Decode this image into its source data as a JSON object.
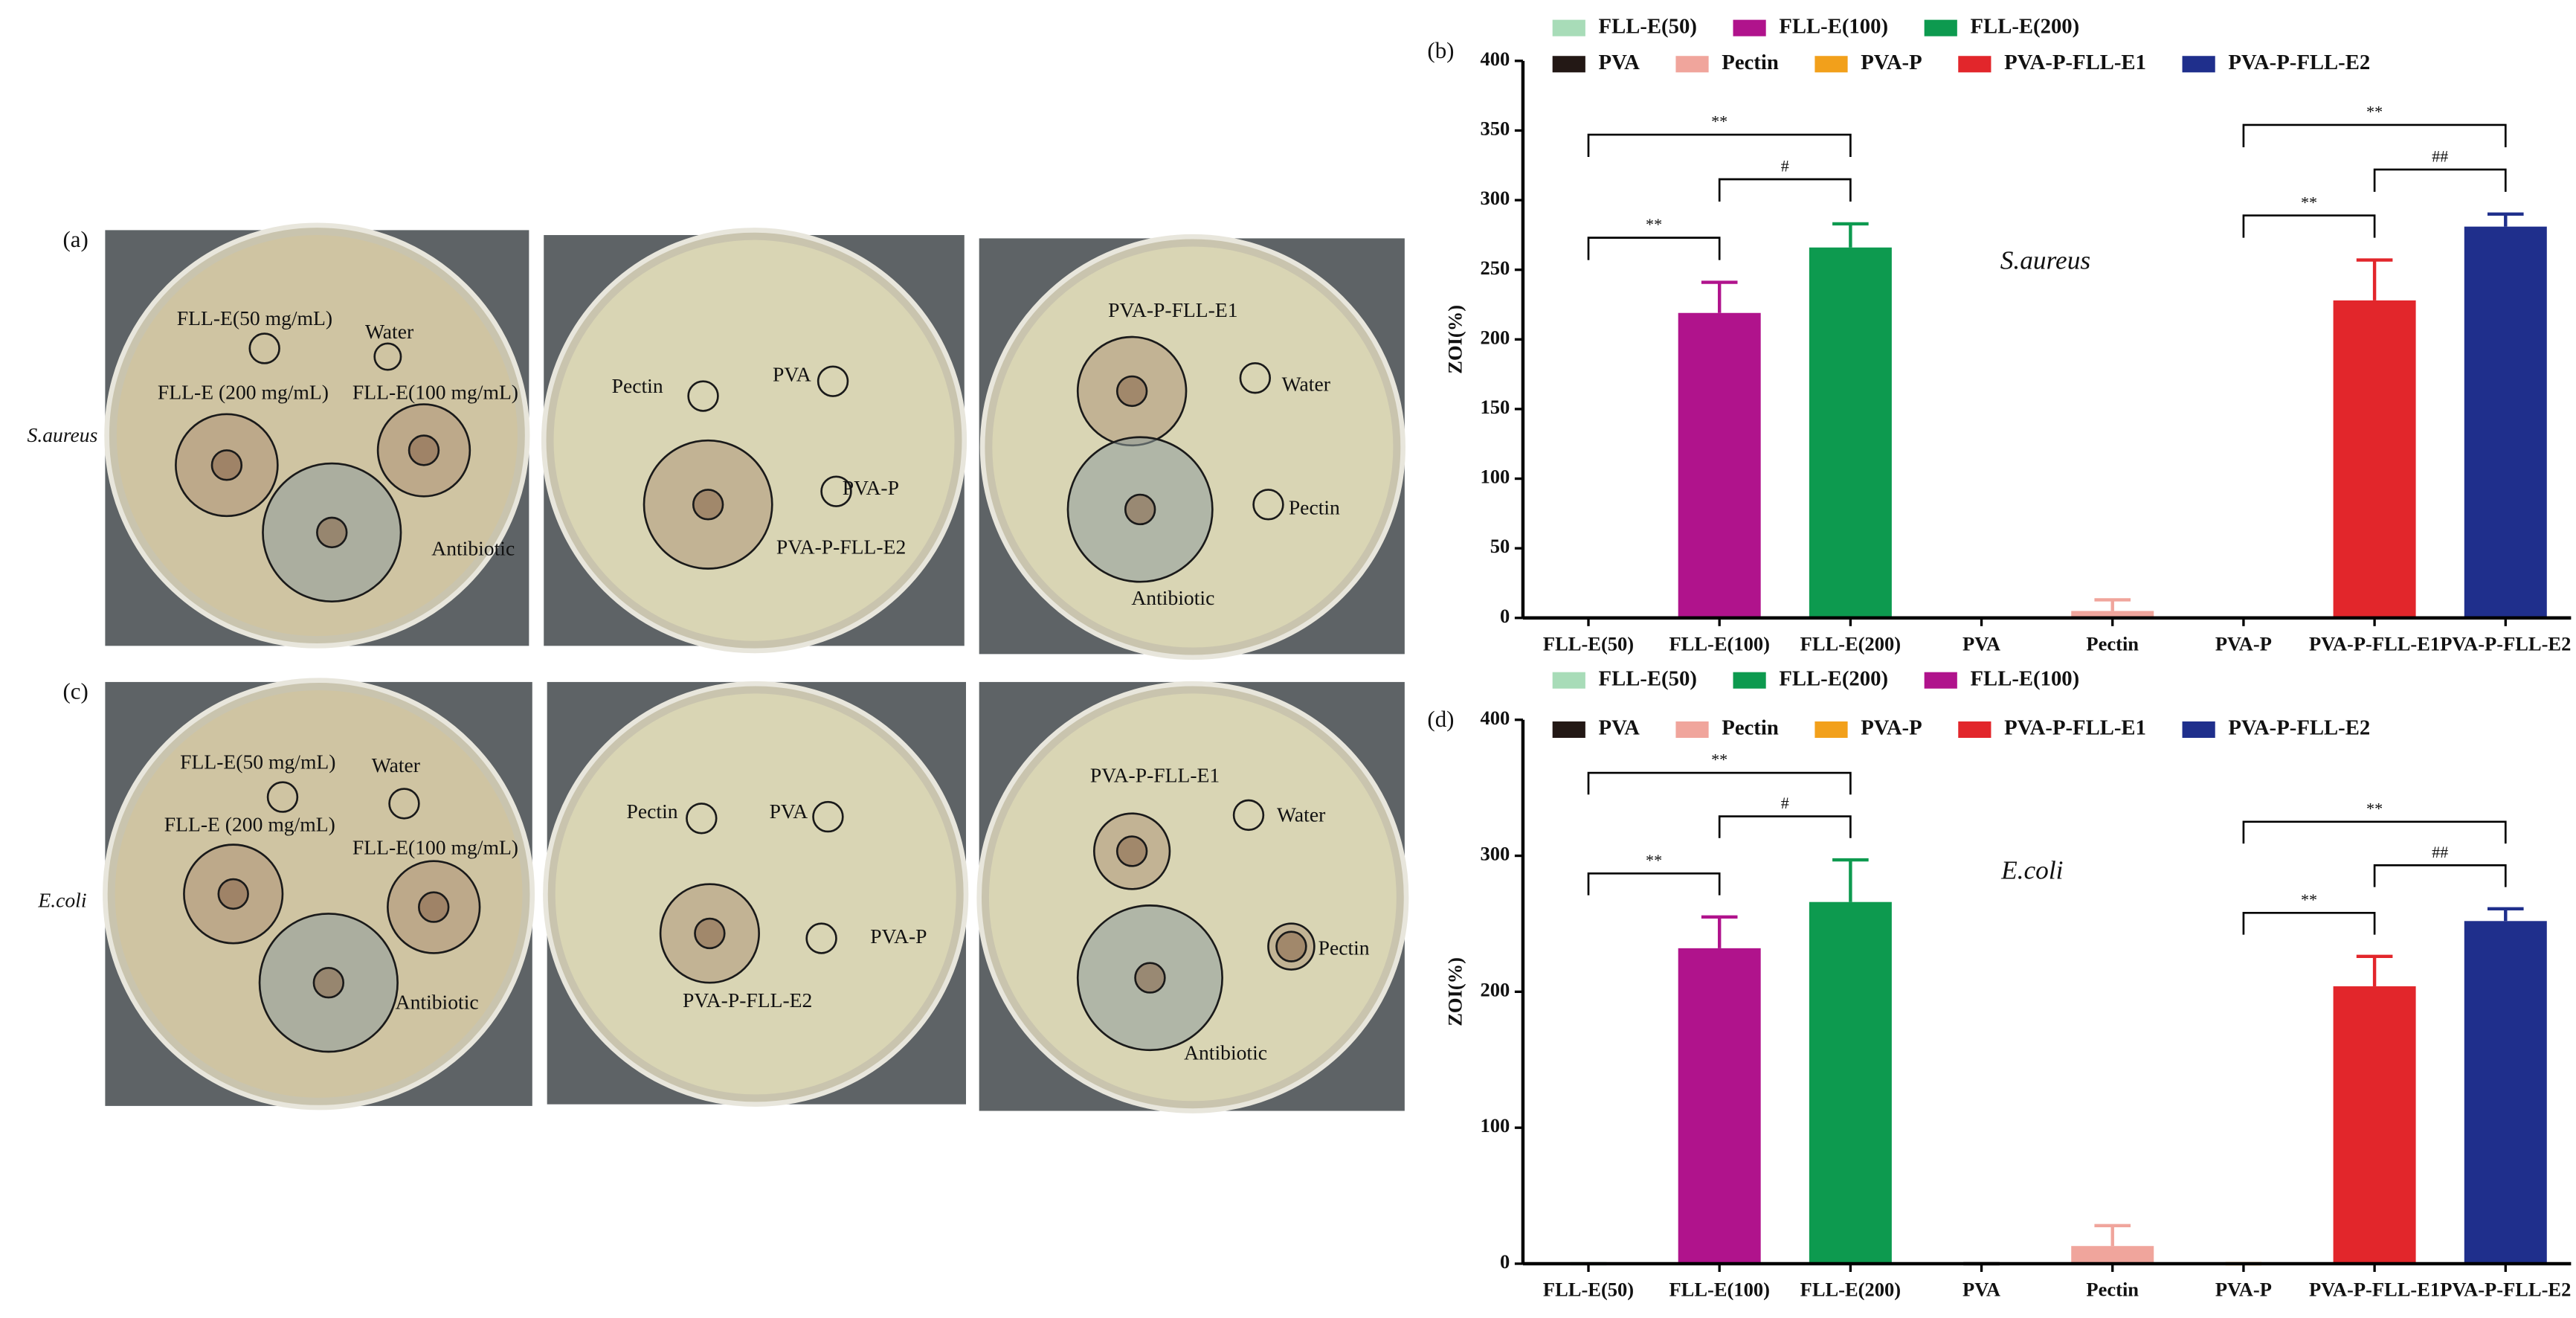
{
  "photos": {
    "label_a": "(a)",
    "label_c": "(c)",
    "row_labels": [
      "S.aureus",
      "E.coli"
    ],
    "plates": [
      {
        "labels": [
          "FLL-E(50 mg/mL)",
          "Water",
          "FLL-E (200 mg/mL)",
          "FLL-E(100 mg/mL)",
          "Antibiotic"
        ]
      },
      {
        "labels": [
          "Pectin",
          "PVA",
          "PVA-P",
          "PVA-P-FLL-E2"
        ]
      },
      {
        "labels": [
          "PVA-P-FLL-E1",
          "Water",
          "Pectin",
          "Antibiotic"
        ]
      },
      {
        "labels": [
          "FLL-E(50 mg/mL)",
          "Water",
          "FLL-E (200 mg/mL)",
          "FLL-E(100 mg/mL)",
          "Antibiotic"
        ]
      },
      {
        "labels": [
          "Pectin",
          "PVA",
          "PVA-P",
          "PVA-P-FLL-E2"
        ]
      },
      {
        "labels": [
          "PVA-P-FLL-E1",
          "Water",
          "Antibiotic",
          "Pectin"
        ]
      }
    ]
  },
  "chart_data": [
    {
      "type": "bar",
      "panel_label": "(b)",
      "y_label": "ZOI(%)",
      "annotation": "S.aureus",
      "categories": [
        "FLL-E(50)",
        "FLL-E(100)",
        "FLL-E(200)",
        "PVA",
        "Pectin",
        "PVA-P",
        "PVA-P-FLL-E1",
        "PVA-P-FLL-E2"
      ],
      "values": [
        0,
        219,
        266,
        0,
        5,
        0,
        228,
        281
      ],
      "errors": [
        0,
        22,
        17,
        0,
        8,
        0,
        29,
        9
      ],
      "colors": [
        "#a8dcb8",
        "#b0138c",
        "#0d9a4f",
        "#231815",
        "#f0a59c",
        "#f2a01b",
        "#e2262b",
        "#1f2f8c"
      ],
      "legend": [
        [
          {
            "name": "FLL-E(50)",
            "color": "#a8dcb8"
          },
          {
            "name": "FLL-E(100)",
            "color": "#b0138c"
          },
          {
            "name": "FLL-E(200)",
            "color": "#0d9a4f"
          }
        ],
        [
          {
            "name": "PVA",
            "color": "#231815"
          },
          {
            "name": "Pectin",
            "color": "#f0a59c"
          },
          {
            "name": "PVA-P",
            "color": "#f2a01b"
          },
          {
            "name": "PVA-P-FLL-E1",
            "color": "#e2262b"
          },
          {
            "name": "PVA-P-FLL-E2",
            "color": "#1f2f8c"
          }
        ]
      ],
      "comparisons": [
        {
          "from": 0,
          "to": 1,
          "label": "**"
        },
        {
          "from": 1,
          "to": 2,
          "label": "#"
        },
        {
          "from": 0,
          "to": 2,
          "label": "**"
        },
        {
          "from": 5,
          "to": 6,
          "label": "**"
        },
        {
          "from": 6,
          "to": 7,
          "label": "##"
        },
        {
          "from": 5,
          "to": 7,
          "label": "**"
        }
      ],
      "ylim": [
        0,
        400
      ],
      "yticks": [
        0,
        50,
        100,
        150,
        200,
        250,
        300,
        350,
        400
      ]
    },
    {
      "type": "bar",
      "panel_label": "(d)",
      "y_label": "ZOI(%)",
      "annotation": "E.coli",
      "categories": [
        "FLL-E(50)",
        "FLL-E(100)",
        "FLL-E(200)",
        "PVA",
        "Pectin",
        "PVA-P",
        "PVA-P-FLL-E1",
        "PVA-P-FLL-E2"
      ],
      "values": [
        0,
        232,
        266,
        0,
        13,
        0,
        204,
        252
      ],
      "errors": [
        0,
        23,
        31,
        0,
        15,
        0,
        22,
        9
      ],
      "colors": [
        "#a8dcb8",
        "#b0138c",
        "#0d9a4f",
        "#231815",
        "#f0a59c",
        "#f2a01b",
        "#e2262b",
        "#1f2f8c"
      ],
      "legend": [
        [
          {
            "name": "FLL-E(50)",
            "color": "#a8dcb8"
          },
          {
            "name": "FLL-E(200)",
            "color": "#0d9a4f"
          },
          {
            "name": "FLL-E(100)",
            "color": "#b0138c"
          }
        ],
        [
          {
            "name": "PVA",
            "color": "#231815"
          },
          {
            "name": "Pectin",
            "color": "#f0a59c"
          },
          {
            "name": "PVA-P",
            "color": "#f2a01b"
          },
          {
            "name": "PVA-P-FLL-E1",
            "color": "#e2262b"
          },
          {
            "name": "PVA-P-FLL-E2",
            "color": "#1f2f8c"
          }
        ]
      ],
      "comparisons": [
        {
          "from": 0,
          "to": 1,
          "label": "**"
        },
        {
          "from": 1,
          "to": 2,
          "label": "#"
        },
        {
          "from": 0,
          "to": 2,
          "label": "**"
        },
        {
          "from": 5,
          "to": 6,
          "label": "**"
        },
        {
          "from": 6,
          "to": 7,
          "label": "##"
        },
        {
          "from": 5,
          "to": 7,
          "label": "**"
        }
      ],
      "ylim": [
        0,
        400
      ],
      "yticks": [
        0,
        100,
        200,
        300,
        400
      ]
    }
  ]
}
